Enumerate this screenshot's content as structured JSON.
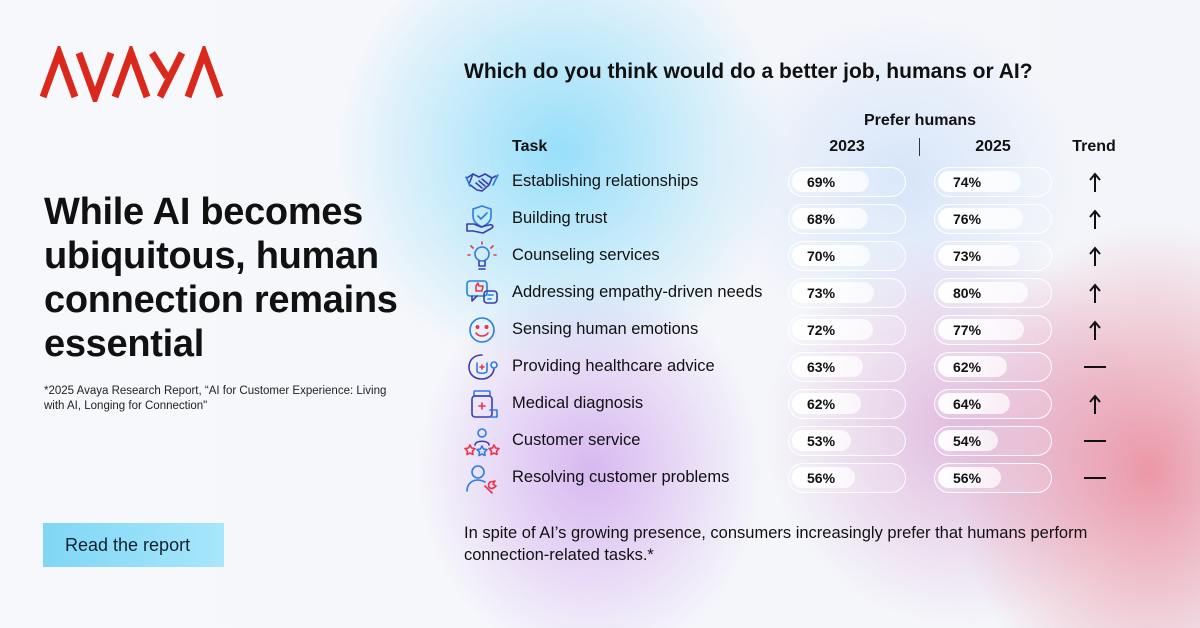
{
  "brand": {
    "logo_text": "AVAYA",
    "color": "#da291c"
  },
  "headline": "While AI becomes ubiquitous, human connection remains essential",
  "footnote": "*2025 Avaya Research Report, “AI for Customer Experience: Living with AI, Longing for Connection\"",
  "cta_label": "Read the report",
  "closing_text": "In spite of AI’s growing presence, consumers increasingly prefer that humans perform connection-related tasks.*",
  "chart_data": {
    "type": "table",
    "title": "Which do you think would do a better job, humans or AI?",
    "group_header": "Prefer humans",
    "columns": {
      "task": "Task",
      "y2023": "2023",
      "y2025": "2025",
      "trend": "Trend"
    },
    "unit": "%",
    "rows": [
      {
        "icon": "handshake-icon",
        "task": "Establishing relationships",
        "v2023": 69,
        "v2025": 74,
        "l2023": "69%",
        "l2025": "74%",
        "trend": "up"
      },
      {
        "icon": "shield-hand-icon",
        "task": "Building trust",
        "v2023": 68,
        "v2025": 76,
        "l2023": "68%",
        "l2025": "76%",
        "trend": "up"
      },
      {
        "icon": "lightbulb-icon",
        "task": "Counseling services",
        "v2023": 70,
        "v2025": 73,
        "l2023": "70%",
        "l2025": "73%",
        "trend": "up"
      },
      {
        "icon": "chat-thumbs-up-icon",
        "task": "Addressing empathy-driven needs",
        "v2023": 73,
        "v2025": 80,
        "l2023": "73%",
        "l2025": "80%",
        "trend": "up"
      },
      {
        "icon": "smiley-icon",
        "task": "Sensing human emotions",
        "v2023": 72,
        "v2025": 77,
        "l2023": "72%",
        "l2025": "77%",
        "trend": "up"
      },
      {
        "icon": "stethoscope-icon",
        "task": "Providing healthcare advice",
        "v2023": 63,
        "v2025": 62,
        "l2023": "63%",
        "l2025": "62%",
        "trend": "flat"
      },
      {
        "icon": "medicine-bottle-icon",
        "task": "Medical diagnosis",
        "v2023": 62,
        "v2025": 64,
        "l2023": "62%",
        "l2025": "64%",
        "trend": "up"
      },
      {
        "icon": "agent-stars-icon",
        "task": "Customer service",
        "v2023": 53,
        "v2025": 54,
        "l2023": "53%",
        "l2025": "54%",
        "trend": "flat"
      },
      {
        "icon": "user-wrench-icon",
        "task": "Resolving customer problems",
        "v2023": 56,
        "v2025": 56,
        "l2023": "56%",
        "l2025": "56%",
        "trend": "flat"
      }
    ]
  }
}
